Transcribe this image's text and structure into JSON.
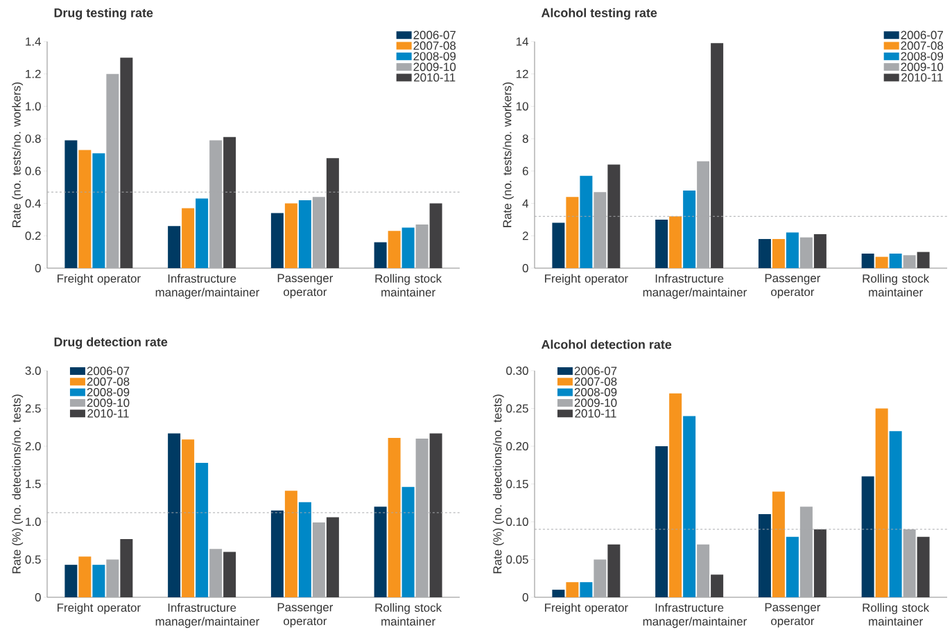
{
  "chart_data": [
    {
      "type": "bar",
      "title": "Drug testing rate",
      "ylabel": "Rate (no. tests/no. workers)",
      "categories": [
        "Freight operator",
        "Infrastructure manager/maintainer",
        "Passenger operator",
        "Rolling stock maintainer"
      ],
      "legend": "top right",
      "ylim": [
        0,
        1.4
      ],
      "yticks": [
        0,
        0.2,
        0.4,
        0.6,
        0.8,
        {
          "value": 1,
          "label": "1.0"
        },
        1.2,
        1.4
      ],
      "ref_lines": [
        {
          "axis": "y",
          "value": 0.47,
          "color": "#a7a9ac",
          "line_style": "dashed"
        }
      ],
      "series": [
        {
          "name": "2006-07",
          "color": "#003a63",
          "values": [
            0.79,
            0.26,
            0.34,
            0.16
          ]
        },
        {
          "name": "2007-08",
          "color": "#f7941d",
          "values": [
            0.73,
            0.37,
            0.4,
            0.23
          ]
        },
        {
          "name": "2008-09",
          "color": "#0088c7",
          "values": [
            0.71,
            0.43,
            0.42,
            0.25
          ]
        },
        {
          "name": "2009-10",
          "color": "#a7a9ac",
          "values": [
            1.2,
            0.79,
            0.44,
            0.27
          ]
        },
        {
          "name": "2010-11",
          "color": "#414042",
          "values": [
            1.3,
            0.81,
            0.68,
            0.4
          ]
        }
      ]
    },
    {
      "type": "bar",
      "title": "Alcohol testing rate",
      "ylabel": "Rate (no. tests/no. workers)",
      "categories": [
        "Freight operator",
        "Infrastructure manager/maintainer",
        "Passenger operator",
        "Rolling stock maintainer"
      ],
      "legend": "top right",
      "ylim": [
        0,
        14
      ],
      "yticks": [
        0,
        2,
        4,
        6,
        8,
        10,
        12,
        14
      ],
      "ref_lines": [
        {
          "axis": "y",
          "value": 3.2,
          "color": "#a7a9ac",
          "line_style": "dashed"
        }
      ],
      "series": [
        {
          "name": "2006-07",
          "color": "#003a63",
          "values": [
            2.8,
            3.0,
            1.8,
            0.9
          ]
        },
        {
          "name": "2007-08",
          "color": "#f7941d",
          "values": [
            4.4,
            3.2,
            1.8,
            0.7
          ]
        },
        {
          "name": "2008-09",
          "color": "#0088c7",
          "values": [
            5.7,
            4.8,
            2.2,
            0.9
          ]
        },
        {
          "name": "2009-10",
          "color": "#a7a9ac",
          "values": [
            4.7,
            6.6,
            1.9,
            0.8
          ]
        },
        {
          "name": "2010-11",
          "color": "#414042",
          "values": [
            6.4,
            13.9,
            2.1,
            1.0
          ]
        }
      ]
    },
    {
      "type": "bar",
      "title": "Drug detection rate",
      "ylabel": "Rate (%) (no. detections/no. tests)",
      "categories": [
        "Freight operator",
        "Infrastructure manager/maintainer",
        "Passenger operator",
        "Rolling stock maintainer"
      ],
      "legend": "top left",
      "ylim": [
        0,
        3
      ],
      "yticks": [
        0,
        0.5,
        {
          "value": 1,
          "label": "1.0"
        },
        1.5,
        {
          "value": 2,
          "label": "2.0"
        },
        2.5,
        {
          "value": 3,
          "label": "3.0"
        }
      ],
      "ref_lines": [
        {
          "axis": "y",
          "value": 1.12,
          "color": "#a7a9ac",
          "line_style": "dashed"
        }
      ],
      "series": [
        {
          "name": "2006-07",
          "color": "#003a63",
          "values": [
            0.43,
            2.17,
            1.15,
            1.2
          ]
        },
        {
          "name": "2007-08",
          "color": "#f7941d",
          "values": [
            0.54,
            2.09,
            1.41,
            2.11
          ]
        },
        {
          "name": "2008-09",
          "color": "#0088c7",
          "values": [
            0.43,
            1.78,
            1.26,
            1.46
          ]
        },
        {
          "name": "2009-10",
          "color": "#a7a9ac",
          "values": [
            0.5,
            0.64,
            0.99,
            2.1
          ]
        },
        {
          "name": "2010-11",
          "color": "#414042",
          "values": [
            0.77,
            0.6,
            1.06,
            2.17
          ]
        }
      ]
    },
    {
      "type": "bar",
      "title": "Alcohol detection rate",
      "ylabel": "Rate (%) (no. detections/no. tests)",
      "categories": [
        "Freight operator",
        "Infrastructure manager/maintainer",
        "Passenger operator",
        "Rolling stock maintainer"
      ],
      "legend": "top left",
      "ylim": [
        0,
        0.3
      ],
      "yticks": [
        0,
        {
          "value": 0.05,
          "label": "0.05"
        },
        {
          "value": 0.1,
          "label": "0.10"
        },
        {
          "value": 0.15,
          "label": "0.15"
        },
        {
          "value": 0.2,
          "label": "0.20"
        },
        {
          "value": 0.25,
          "label": "0.25"
        },
        {
          "value": 0.3,
          "label": "0.30"
        }
      ],
      "ref_lines": [
        {
          "axis": "y",
          "value": 0.09,
          "color": "#a7a9ac",
          "line_style": "dashed"
        }
      ],
      "series": [
        {
          "name": "2006-07",
          "color": "#003a63",
          "values": [
            0.01,
            0.2,
            0.11,
            0.16
          ]
        },
        {
          "name": "2007-08",
          "color": "#f7941d",
          "values": [
            0.02,
            0.27,
            0.14,
            0.25
          ]
        },
        {
          "name": "2008-09",
          "color": "#0088c7",
          "values": [
            0.02,
            0.24,
            0.08,
            0.22
          ]
        },
        {
          "name": "2009-10",
          "color": "#a7a9ac",
          "values": [
            0.05,
            0.07,
            0.12,
            0.09
          ]
        },
        {
          "name": "2010-11",
          "color": "#414042",
          "values": [
            0.07,
            0.03,
            0.09,
            0.08
          ]
        }
      ]
    }
  ]
}
